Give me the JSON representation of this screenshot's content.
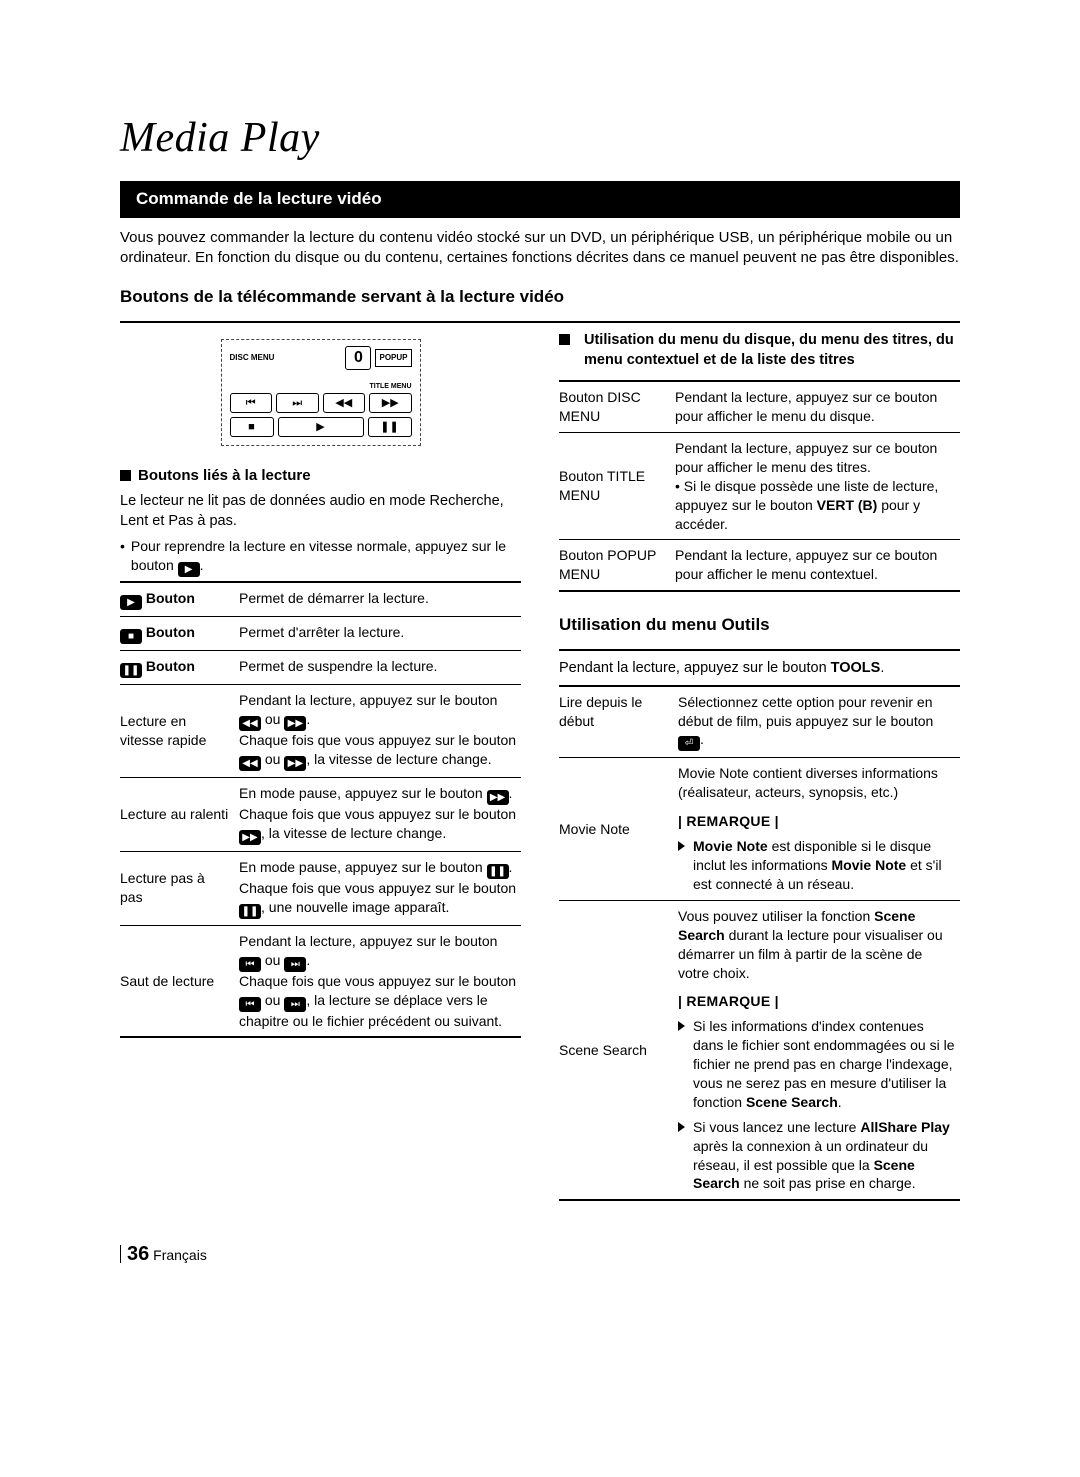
{
  "page_title": "Media Play",
  "section_bar": "Commande de la lecture vidéo",
  "intro": "Vous pouvez commander la lecture du contenu vidéo stocké sur un DVD, un périphérique USB, un périphérique mobile ou un ordinateur. En fonction du disque ou du contenu, certaines fonctions décrites dans ce manuel peuvent ne pas être disponibles.",
  "subheading": "Boutons de la télécommande servant à la lecture vidéo",
  "remote": {
    "disc_menu": "DISC MENU",
    "title_menu": "TITLE MENU",
    "popup": "POPUP",
    "disp": "0",
    "row2": [
      "⏮",
      "⏭",
      "◀◀",
      "▶▶"
    ],
    "row3": [
      "■",
      "▶",
      "❚❚"
    ]
  },
  "left": {
    "sub1": "Boutons liés à la lecture",
    "p1": "Le lecteur ne lit pas de données audio en mode Recherche, Lent et Pas à pas.",
    "p2a": "Pour reprendre la lecture en vitesse normale, appuyez sur le bouton ",
    "p2b": ".",
    "table": [
      {
        "k": "Bouton",
        "icon": "▶",
        "v": "Permet de démarrer la lecture."
      },
      {
        "k": "Bouton",
        "icon": "■",
        "v": "Permet d'arrêter la lecture."
      },
      {
        "k": "Bouton",
        "icon": "❚❚",
        "v": "Permet de suspendre la lecture."
      },
      {
        "k": "Lecture en vitesse rapide",
        "v_parts": [
          "Pendant la lecture, appuyez sur le bouton ",
          {
            "icon": "◀◀"
          },
          " ou ",
          {
            "icon": "▶▶"
          },
          ".",
          "Chaque fois que vous appuyez sur le bouton ",
          {
            "icon": "◀◀"
          },
          " ou ",
          {
            "icon": "▶▶"
          },
          ", la vitesse de lecture change."
        ]
      },
      {
        "k": "Lecture au ralenti",
        "v_parts": [
          "En mode pause, appuyez sur le bouton ",
          {
            "icon": "▶▶"
          },
          ".",
          "Chaque fois que vous appuyez sur le bouton ",
          {
            "icon": "▶▶"
          },
          ", la vitesse de lecture change."
        ]
      },
      {
        "k": "Lecture pas à pas",
        "v_parts": [
          "En mode pause, appuyez sur le bouton ",
          {
            "icon": "❚❚"
          },
          ".",
          "Chaque fois que vous appuyez sur le bouton ",
          {
            "icon": "❚❚"
          },
          ", une nouvelle image apparaît."
        ]
      },
      {
        "k": "Saut de lecture",
        "v_parts": [
          "Pendant la lecture, appuyez sur le bouton ",
          {
            "icon": "⏮"
          },
          " ou ",
          {
            "icon": "⏭"
          },
          ".",
          "Chaque fois que vous appuyez sur le bouton ",
          {
            "icon": "⏮"
          },
          " ou ",
          {
            "icon": "⏭"
          },
          ", la lecture se déplace vers le chapitre ou le fichier précédent ou suivant."
        ]
      }
    ]
  },
  "right": {
    "head1": "Utilisation du menu du disque, du menu des titres, du menu contextuel et de la liste des titres",
    "table1": {
      "rows": [
        {
          "k": "Bouton DISC MENU",
          "v": "Pendant la lecture, appuyez sur ce bouton pour afficher le menu du disque."
        },
        {
          "k": "Bouton TITLE MENU",
          "v_html": "Pendant la lecture, appuyez sur ce bouton pour afficher le menu des titres.<br>• Si le disque possède une liste de lecture, appuyez sur le bouton <b>VERT (B)</b> pour y accéder."
        },
        {
          "k": "Bouton POPUP MENU",
          "v": "Pendant la lecture, appuyez sur ce bouton pour afficher le menu contextuel."
        }
      ]
    },
    "sub2": "Utilisation du menu Outils",
    "p3_a": "Pendant la lecture, appuyez sur le bouton ",
    "p3_b": "TOOLS",
    "p3_c": ".",
    "table2": {
      "r1_k": "Lire depuis le début",
      "r1_v_a": "Sélectionnez cette option pour revenir en début de film, puis appuyez sur le bouton ",
      "r1_v_b": ".",
      "r2_k": "Movie Note",
      "r2_v1": "Movie Note contient diverses informations (réalisateur, acteurs, synopsis, etc.)",
      "r2_rem": "| REMARQUE |",
      "r2_note_a": "Movie Note",
      "r2_note_b": " est disponible si le disque inclut les informations ",
      "r2_note_c": "Movie Note",
      "r2_note_d": " et s'il est connecté à un réseau.",
      "r3_k": "Scene Search",
      "r3_v1_a": "Vous pouvez utiliser la fonction ",
      "r3_v1_b": "Scene Search",
      "r3_v1_c": " durant la lecture pour visualiser ou démarrer un film à partir de la scène de votre choix.",
      "r3_rem": "| REMARQUE |",
      "r3_n1_a": "Si les informations d'index contenues dans le fichier sont endommagées ou si le fichier ne prend pas en charge l'indexage, vous ne serez pas en mesure d'utiliser la fonction ",
      "r3_n1_b": "Scene Search",
      "r3_n1_c": ".",
      "r3_n2_a": "Si vous lancez une lecture ",
      "r3_n2_b": "AllShare Play",
      "r3_n2_c": " après la connexion à un ordinateur du réseau, il est possible que la ",
      "r3_n2_d": "Scene Search",
      "r3_n2_e": " ne soit pas prise en charge."
    }
  },
  "footer": {
    "pn": "36",
    "lang": "Français"
  }
}
